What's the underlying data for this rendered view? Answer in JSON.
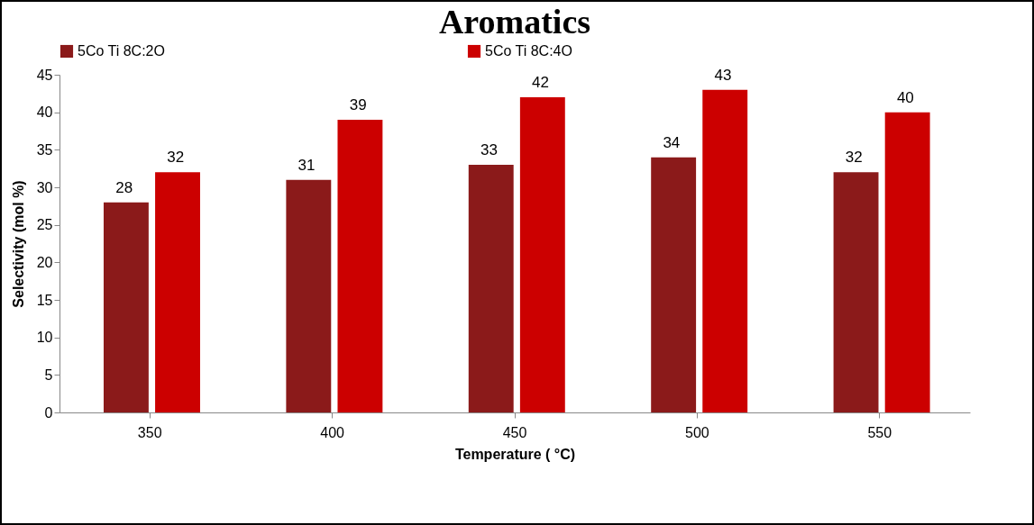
{
  "chart_data": {
    "type": "bar",
    "title": "Aromatics",
    "xlabel": "Temperature  ( °C)",
    "ylabel": "Selectivity (mol %)",
    "categories": [
      "350",
      "400",
      "450",
      "500",
      "550"
    ],
    "series": [
      {
        "name": "5Co Ti  8C:2O",
        "color": "#8b1a1a",
        "values": [
          28,
          31,
          33,
          34,
          32
        ]
      },
      {
        "name": "5Co Ti  8C:4O",
        "color": "#cc0000",
        "values": [
          32,
          39,
          42,
          43,
          40
        ]
      }
    ],
    "ylim": [
      0,
      45
    ],
    "yticks": [
      0,
      5,
      10,
      15,
      20,
      25,
      30,
      35,
      40,
      45
    ],
    "grid": false,
    "legend": "top",
    "data_labels": true
  }
}
